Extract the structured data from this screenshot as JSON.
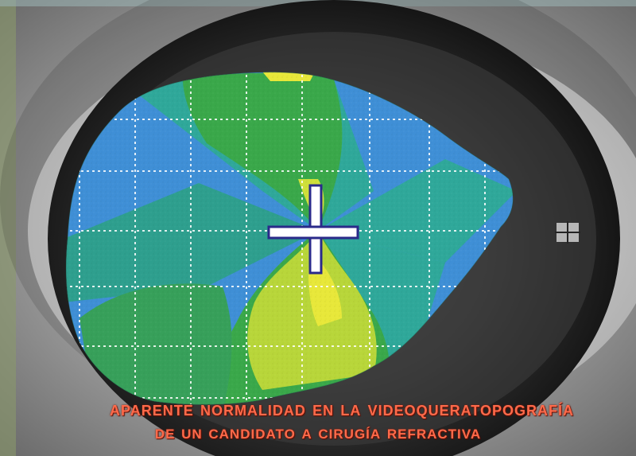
{
  "caption": {
    "line1": "Aparente normalidad en la videoqueratopografía",
    "line2": "de un candidato a cirugía refractiva"
  },
  "colors": {
    "caption": "#ff6a4a",
    "map_blue": "#3f8fd6",
    "map_teal": "#2fa89a",
    "map_green": "#3aa84a",
    "map_yellow_green": "#b8d63a",
    "map_yellow": "#e8e83a",
    "iris": "#3a3a3a",
    "sclera": "#d8d8d8"
  },
  "scene": {
    "subject": "eye-photograph",
    "overlay": "corneal-topography-color-map",
    "grid": true,
    "reticle": "crosshair"
  }
}
